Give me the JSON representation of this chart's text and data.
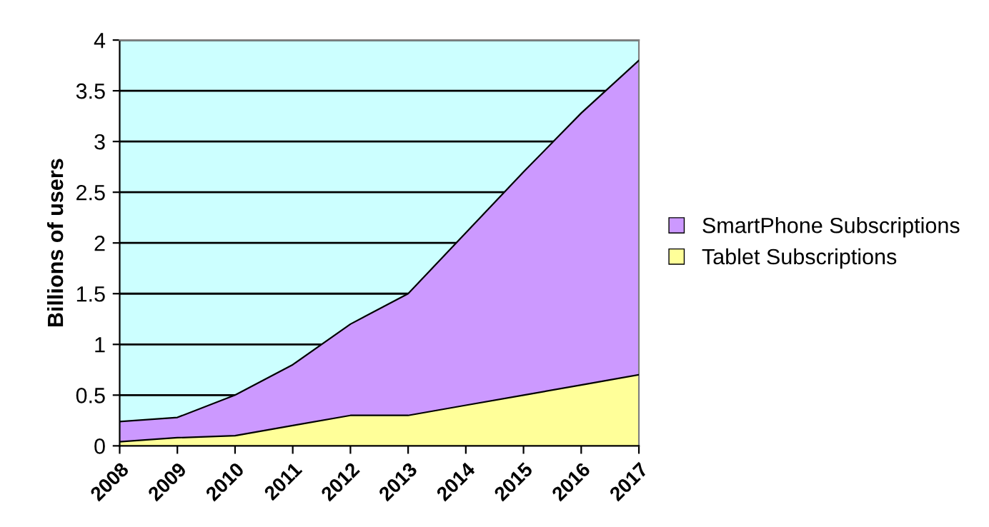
{
  "chart_data": {
    "type": "area",
    "stacked": true,
    "ylabel": "Billions of users",
    "categories": [
      "2008",
      "2009",
      "2010",
      "2011",
      "2012",
      "2013",
      "2014",
      "2015",
      "2016",
      "2017"
    ],
    "series": [
      {
        "name": "Tablet Subscriptions",
        "color": "#ffff99",
        "values": [
          0.04,
          0.08,
          0.1,
          0.2,
          0.3,
          0.3,
          0.4,
          0.5,
          0.6,
          0.7
        ]
      },
      {
        "name": "SmartPhone Subscriptions",
        "color": "#cc99ff",
        "values": [
          0.2,
          0.2,
          0.4,
          0.6,
          0.9,
          1.2,
          1.7,
          2.2,
          2.68,
          3.1
        ]
      }
    ],
    "ylim": [
      0,
      4
    ],
    "yticks": [
      0,
      0.5,
      1,
      1.5,
      2,
      2.5,
      3,
      3.5,
      4
    ],
    "grid": "y",
    "legend": "right"
  }
}
